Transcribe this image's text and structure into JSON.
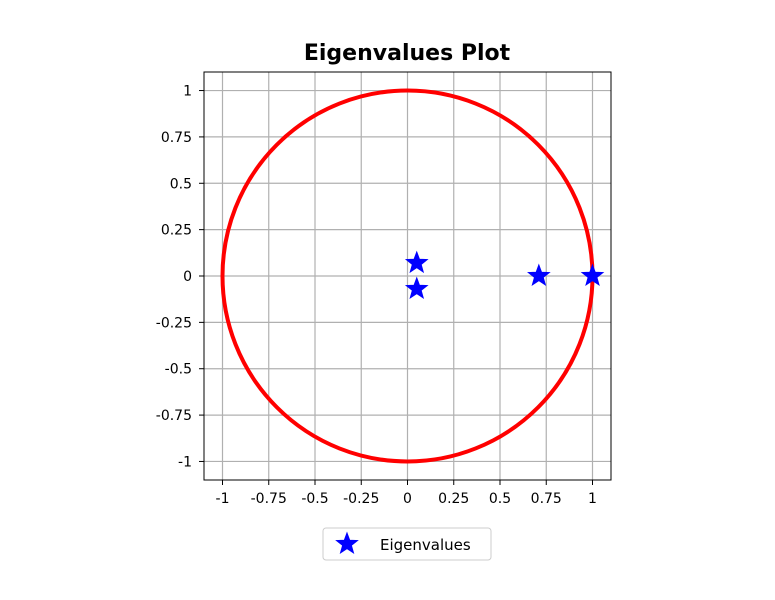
{
  "chart_data": {
    "type": "scatter",
    "title": "Eigenvalues Plot",
    "xlabel": "",
    "ylabel": "",
    "xlim": [
      -1.1,
      1.1
    ],
    "ylim": [
      -1.1,
      1.1
    ],
    "grid": true,
    "x_ticks": [
      -1,
      -0.75,
      -0.5,
      -0.25,
      0,
      0.25,
      0.5,
      0.75,
      1
    ],
    "x_tick_labels": [
      "-1",
      "-0.75",
      "-0.5",
      "-0.25",
      "0",
      "0.25",
      "0.5",
      "0.75",
      "1"
    ],
    "y_ticks": [
      -1,
      -0.75,
      -0.5,
      -0.25,
      0,
      0.25,
      0.5,
      0.75,
      1
    ],
    "y_tick_labels": [
      "-1",
      "-0.75",
      "-0.5",
      "-0.25",
      "0",
      "0.25",
      "0.5",
      "0.75",
      "1"
    ],
    "unit_circle": {
      "radius": 1,
      "color": "#ff0000"
    },
    "series": [
      {
        "name": "Eigenvalues",
        "marker": "star",
        "color": "#0000ff",
        "points": [
          {
            "x": 0.05,
            "y": 0.07
          },
          {
            "x": 0.05,
            "y": -0.07
          },
          {
            "x": 0.71,
            "y": 0.0
          },
          {
            "x": 1.0,
            "y": 0.0
          }
        ]
      }
    ],
    "legend": {
      "placement": "bottom-center",
      "entries": [
        "Eigenvalues"
      ]
    }
  }
}
